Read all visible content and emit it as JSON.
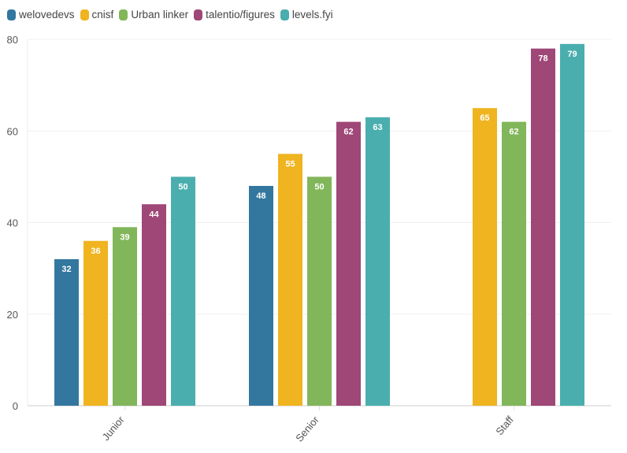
{
  "chart_data": {
    "type": "bar",
    "categories": [
      "Junior",
      "Senior",
      "Staff"
    ],
    "series": [
      {
        "name": "welovedevs",
        "color": "#33779f",
        "values": [
          32,
          48,
          null
        ]
      },
      {
        "name": "cnisf",
        "color": "#efb420",
        "values": [
          36,
          55,
          65
        ]
      },
      {
        "name": "Urban linker",
        "color": "#82b65a",
        "values": [
          39,
          50,
          62
        ]
      },
      {
        "name": "talentio/figures",
        "color": "#9f4777",
        "values": [
          44,
          62,
          78
        ]
      },
      {
        "name": "levels.fyi",
        "color": "#4aaeae",
        "values": [
          50,
          63,
          79
        ]
      }
    ],
    "ylim": [
      0,
      80
    ],
    "yticks": [
      0,
      20,
      40,
      60,
      80
    ],
    "grid": true,
    "legend": "top-left",
    "data_labels": true
  }
}
